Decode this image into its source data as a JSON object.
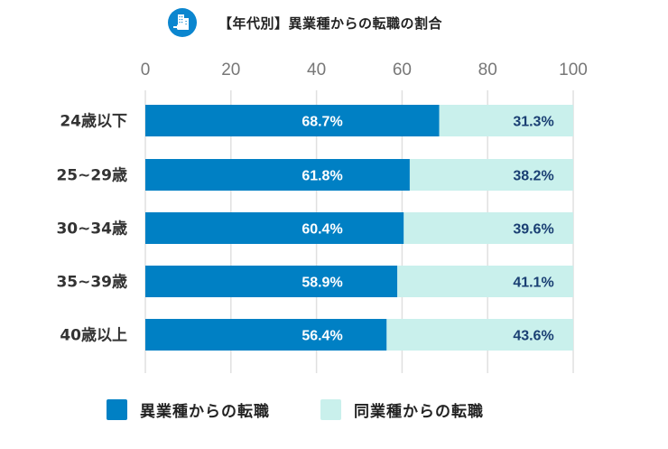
{
  "chart_data": {
    "type": "bar",
    "orientation": "horizontal",
    "stacked": true,
    "title": "【年代別】異業種からの転職の割合",
    "title_icon": "building-icon",
    "categories": [
      "24歳以下",
      "25~29歳",
      "30~34歳",
      "35~39歳",
      "40歳以上"
    ],
    "series": [
      {
        "name": "異業種からの転職",
        "color": "#0080c4",
        "values": [
          68.7,
          61.8,
          60.4,
          58.9,
          56.4
        ],
        "labels": [
          "68.7%",
          "61.8%",
          "60.4%",
          "58.9%",
          "56.4%"
        ]
      },
      {
        "name": "同業種からの転職",
        "color": "#c9f0ec",
        "values": [
          31.3,
          38.2,
          39.6,
          41.1,
          43.6
        ],
        "labels": [
          "31.3%",
          "38.2%",
          "39.6%",
          "41.1%",
          "43.6%"
        ]
      }
    ],
    "xlim": [
      0,
      100
    ],
    "xticks": [
      0,
      20,
      40,
      60,
      80,
      100
    ],
    "xtick_labels": [
      "0",
      "20",
      "40",
      "60",
      "80",
      "100"
    ],
    "xaxis_position": "top",
    "grid": true,
    "legend_position": "bottom",
    "xlabel": "",
    "ylabel": ""
  },
  "colors": {
    "primary": "#0080c4",
    "secondary": "#c9f0ec",
    "icon_bg": "#0b86cf",
    "outside_label": "#1a3f73",
    "grid": "#e0e0e0"
  }
}
